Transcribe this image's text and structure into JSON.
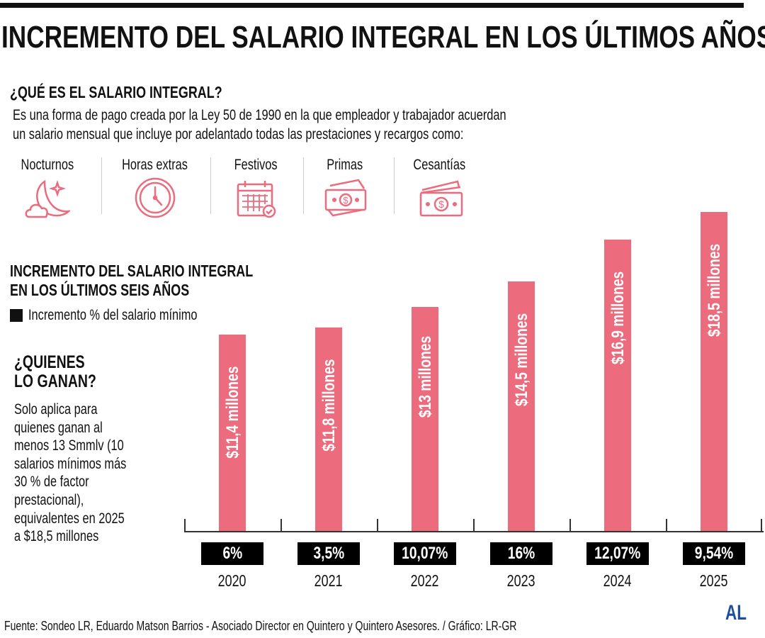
{
  "title": "INCREMENTO DEL SALARIO INTEGRAL EN LOS ÚLTIMOS AÑOS",
  "what_is": {
    "heading": "¿QUÉ ES EL SALARIO INTEGRAL?",
    "lines": [
      "Es una forma de pago creada por la  Ley 50 de 1990 en la que empleador y trabajador acuerdan",
      "un salario mensual que incluye por adelantado todas las prestaciones y recargos como:"
    ]
  },
  "items": [
    {
      "label": "Nocturnos",
      "icon": "moon-cloud-icon"
    },
    {
      "label": "Horas extras",
      "icon": "clock-icon"
    },
    {
      "label": "Festivos",
      "icon": "calendar-icon"
    },
    {
      "label": "Primas",
      "icon": "banknotes-icon"
    },
    {
      "label": "Cesantías",
      "icon": "cash-stack-icon"
    }
  ],
  "who": {
    "heading": [
      "¿QUIENES",
      "LO GANAN?"
    ],
    "lines": [
      "Solo aplica para",
      "quienes ganan al",
      "menos 13 Smmlv (10",
      "salarios mínimos más",
      "30 % de factor",
      "prestacional),",
      "equivalentes en 2025",
      "a $18,5 millones"
    ]
  },
  "chart_data": {
    "type": "bar",
    "title": [
      "INCREMENTO DEL SALARIO INTEGRAL",
      "EN LOS ÚLTIMOS SEIS AÑOS"
    ],
    "legend": "Incremento % del salario mínimo",
    "categories": [
      "2020",
      "2021",
      "2022",
      "2023",
      "2024",
      "2025"
    ],
    "values": [
      11.4,
      11.8,
      13,
      14.5,
      16.9,
      18.5
    ],
    "value_labels": [
      "$11,4 millones",
      "$11,8 millones",
      "$13 millones",
      "$14,5 millones",
      "$16,9 millones",
      "$18,5 millones"
    ],
    "increments": [
      "6%",
      "3,5%",
      "10,07%",
      "16%",
      "12,07%",
      "9,54%"
    ],
    "unit": "millones de pesos",
    "ylim": [
      0,
      18.5
    ],
    "bar_color": "#ec6b7d",
    "increment_box_color": "#000000"
  },
  "footer": "Fuente: Sondeo LR, Eduardo Matson Barrios - Asociado Director en Quintero y Quintero Asesores.  / Gráfico: LR-GR",
  "logo": "AL",
  "colors": {
    "accent": "#ec6b7d",
    "logo": "#1f4e9c"
  }
}
